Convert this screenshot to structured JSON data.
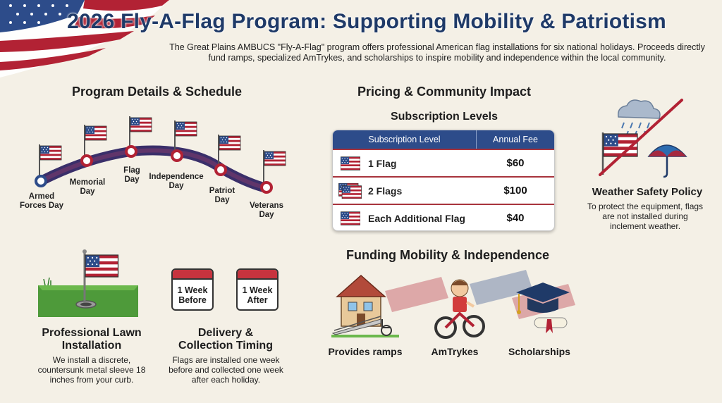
{
  "header": {
    "title": "2026 Fly-A-Flag Program: Supporting Mobility & Patriotism",
    "subtitle": "The Great Plains AMBUCS \"Fly-A-Flag\" program offers professional American flag installations for six national holidays. Proceeds directly fund ramps, specialized AmTrykes, and scholarships to inspire mobility and independence within the local community."
  },
  "schedule": {
    "title": "Program Details & Schedule",
    "holidays": [
      {
        "line1": "Armed",
        "line2": "Forces Day"
      },
      {
        "line1": "Memorial",
        "line2": "Day"
      },
      {
        "line1": "Flag",
        "line2": "Day"
      },
      {
        "line1": "Independence",
        "line2": "Day"
      },
      {
        "line1": "Patriot",
        "line2": "Day"
      },
      {
        "line1": "Veterans",
        "line2": "Day"
      }
    ]
  },
  "pricing": {
    "title": "Pricing & Community Impact",
    "subscription_title": "Subscription Levels",
    "headers": [
      "Subscription Level",
      "Annual Fee"
    ],
    "rows": [
      {
        "level": "1 Flag",
        "fee": "$60"
      },
      {
        "level": "2 Flags",
        "fee": "$100"
      },
      {
        "level": "Each Additional Flag",
        "fee": "$40"
      }
    ]
  },
  "weather": {
    "title": "Weather Safety Policy",
    "text": "To protect the equipment, flags are not installed during inclement weather."
  },
  "installation": {
    "title_line1": "Professional Lawn",
    "title_line2": "Installation",
    "text": "We install a discrete, countersunk metal sleeve 18 inches from your curb."
  },
  "timing": {
    "cal1_line1": "1 Week",
    "cal1_line2": "Before",
    "cal2_line1": "1 Week",
    "cal2_line2": "After",
    "title_line1": "Delivery &",
    "title_line2": "Collection Timing",
    "text": "Flags are installed one week before and collected one week after each holiday."
  },
  "funding": {
    "title": "Funding Mobility & Independence",
    "items": [
      "Provides ramps",
      "AmTrykes",
      "Scholarships"
    ]
  },
  "colors": {
    "navy": "#1f3a68",
    "red": "#b22234",
    "table_header": "#2d4c8a",
    "background": "#f4f0e6"
  }
}
